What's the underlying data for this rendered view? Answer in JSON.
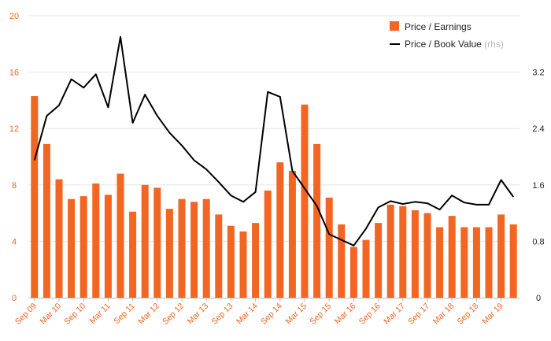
{
  "chart_data": {
    "type": "bar+line",
    "grid": true,
    "legend_position": "top-right",
    "colors": {
      "bars": "#f26522",
      "line": "#000000",
      "grid": "#e6e6e6",
      "left_ticks": "#f26522",
      "right_ticks": "#222222"
    },
    "y_left": {
      "min": 0,
      "max": 20,
      "ticks": [
        "0",
        "4",
        "8",
        "12",
        "16",
        "20"
      ]
    },
    "y_right": {
      "min": 0,
      "max": 4,
      "ticks": [
        "0",
        "0.8",
        "1.6",
        "2.4",
        "3.2"
      ]
    },
    "x_tick_labels": [
      "Sep 09",
      "Mar 10",
      "Sep 10",
      "Mar 11",
      "Sep 11",
      "Mar 12",
      "Sep 12",
      "Mar 13",
      "Sep 13",
      "Mar 14",
      "Sep 14",
      "Mar 15",
      "Sep 15",
      "Mar 16",
      "Sep 16",
      "Mar 17",
      "Sep 17",
      "Mar 18",
      "Sep 18",
      "Mar 19"
    ],
    "series": [
      {
        "name": "Price / Earnings",
        "axis": "left",
        "type": "bar",
        "values": [
          14.3,
          10.9,
          8.4,
          7.0,
          7.2,
          8.1,
          7.3,
          8.8,
          6.1,
          8.0,
          7.8,
          6.3,
          7.0,
          6.8,
          7.0,
          5.9,
          5.1,
          4.7,
          5.3,
          7.6,
          9.6,
          9.0,
          13.7,
          10.9,
          7.1,
          5.2,
          3.6,
          4.1,
          5.3,
          6.6,
          6.5,
          6.2,
          6.0,
          5.0,
          5.8,
          5.0,
          5.0,
          5.0,
          5.9,
          5.2
        ]
      },
      {
        "name": "Price / Book Value",
        "name_suffix": "(rhs)",
        "axis": "right",
        "type": "line",
        "values": [
          1.95,
          2.58,
          2.73,
          3.1,
          2.98,
          3.17,
          2.7,
          3.7,
          2.48,
          2.88,
          2.58,
          2.34,
          2.16,
          1.95,
          1.82,
          1.64,
          1.45,
          1.36,
          1.5,
          2.92,
          2.85,
          1.8,
          1.55,
          1.3,
          0.9,
          0.82,
          0.74,
          0.98,
          1.28,
          1.37,
          1.33,
          1.36,
          1.34,
          1.25,
          1.45,
          1.35,
          1.32,
          1.32,
          1.67,
          1.43
        ]
      }
    ]
  }
}
